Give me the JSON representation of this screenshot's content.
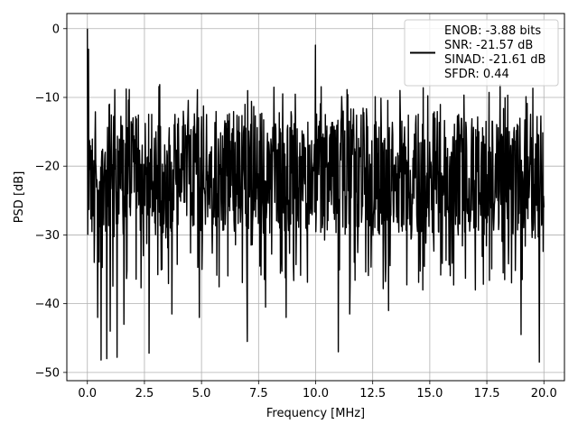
{
  "chart_data": {
    "type": "line",
    "xlabel": "Frequency [MHz]",
    "ylabel": "PSD [dB]",
    "xlim": [
      -0.9,
      20.9
    ],
    "ylim": [
      -51.2,
      2.2
    ],
    "xticks": [
      0.0,
      2.5,
      5.0,
      7.5,
      10.0,
      12.5,
      15.0,
      17.5,
      20.0
    ],
    "xtick_labels": [
      "0.0",
      "2.5",
      "5.0",
      "7.5",
      "10.0",
      "12.5",
      "15.0",
      "17.5",
      "20.0"
    ],
    "yticks": [
      0,
      -10,
      -20,
      -30,
      -40,
      -50
    ],
    "ytick_labels": [
      "0",
      "−10",
      "−20",
      "−30",
      "−40",
      "−50"
    ],
    "grid": true,
    "legend_position": "top-right",
    "legend": [
      "ENOB: -3.88 bits",
      "SNR: -21.57 dB",
      "SINAD: -21.61 dB",
      "SFDR: 0.44"
    ],
    "series_color": "#000000",
    "series": [
      {
        "x_start": 0.0,
        "x_end": 20.0,
        "n_points": 1200,
        "values_summary": {
          "peak_at_dc": 0.0,
          "typical_upper_envelope": -12,
          "typical_lower_envelope": -30,
          "mean_level": -20,
          "min_value": -48.5
        },
        "spikes": [
          {
            "x": 0.0,
            "y": 0.0
          },
          {
            "x": 0.05,
            "y": -3.0
          },
          {
            "x": 0.1,
            "y": -16.5
          },
          {
            "x": 0.3,
            "y": -34.0
          },
          {
            "x": 0.45,
            "y": -42.0
          },
          {
            "x": 0.6,
            "y": -48.2
          },
          {
            "x": 0.85,
            "y": -48.0
          },
          {
            "x": 1.0,
            "y": -44.0
          },
          {
            "x": 1.3,
            "y": -47.8
          },
          {
            "x": 1.6,
            "y": -43.0
          },
          {
            "x": 2.7,
            "y": -47.2
          },
          {
            "x": 3.7,
            "y": -41.5
          },
          {
            "x": 4.9,
            "y": -42.0
          },
          {
            "x": 7.0,
            "y": -45.5
          },
          {
            "x": 7.8,
            "y": -40.5
          },
          {
            "x": 8.7,
            "y": -42.0
          },
          {
            "x": 10.0,
            "y": -2.4
          },
          {
            "x": 11.0,
            "y": -47.0
          },
          {
            "x": 11.5,
            "y": -41.5
          },
          {
            "x": 13.2,
            "y": -41.0
          },
          {
            "x": 14.7,
            "y": -38.0
          },
          {
            "x": 17.0,
            "y": -38.0
          },
          {
            "x": 19.0,
            "y": -44.5
          },
          {
            "x": 19.8,
            "y": -48.5
          },
          {
            "x": 20.0,
            "y": -26.0
          }
        ]
      }
    ]
  }
}
